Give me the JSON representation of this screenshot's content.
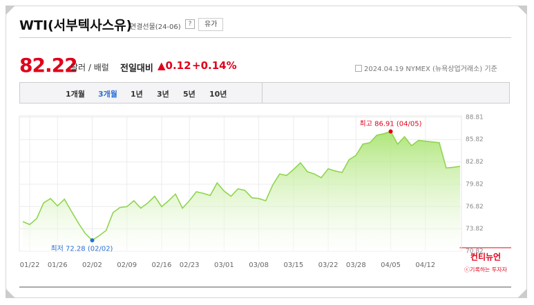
{
  "header": {
    "title": "WTI(서부텍사스유)",
    "subtitle": "연결선물(24-06)",
    "help": "?",
    "button": "유가",
    "price": "82.22",
    "unit": "달러 / 배럴",
    "change_label": "전일대비",
    "change": "▲0.12",
    "change_pct": "+0.14%",
    "basis": "2024.04.19 NYMEX (뉴욕상업거래소) 기준",
    "tabs": [
      "1개월",
      "3개월",
      "1년",
      "3년",
      "5년",
      "10년"
    ]
  },
  "chart_data": {
    "type": "area",
    "color": "#8fd44f",
    "categories": [
      null,
      "01/22",
      null,
      null,
      null,
      "01/26",
      null,
      null,
      null,
      null,
      "02/02",
      null,
      null,
      null,
      null,
      "02/09",
      null,
      null,
      null,
      null,
      "02/16",
      null,
      null,
      null,
      "02/23",
      null,
      null,
      null,
      null,
      "03/01",
      null,
      null,
      null,
      null,
      "03/08",
      null,
      null,
      null,
      null,
      "03/15",
      null,
      null,
      null,
      null,
      "03/22",
      null,
      null,
      null,
      "03/28",
      null,
      null,
      null,
      null,
      "04/05",
      null,
      null,
      null,
      null,
      "04/12",
      null,
      null,
      null,
      null,
      null
    ],
    "values": [
      74.8,
      74.4,
      75.2,
      77.3,
      77.9,
      76.9,
      77.8,
      76.2,
      74.6,
      73.2,
      72.28,
      72.9,
      73.6,
      76.0,
      76.7,
      76.8,
      77.6,
      76.6,
      77.3,
      78.2,
      76.8,
      77.6,
      78.5,
      76.6,
      77.6,
      78.8,
      78.6,
      78.3,
      80.0,
      78.9,
      78.2,
      79.2,
      79.0,
      78.0,
      77.9,
      77.6,
      79.7,
      81.2,
      81.0,
      81.8,
      82.7,
      81.5,
      81.2,
      80.7,
      81.9,
      81.6,
      81.4,
      83.1,
      83.7,
      85.2,
      85.4,
      86.4,
      86.6,
      86.91,
      85.2,
      86.2,
      85.0,
      85.7,
      85.6,
      85.5,
      85.4,
      82.0,
      82.1,
      82.22
    ],
    "ylim": [
      70.82,
      88.81
    ],
    "yticks": [
      70.82,
      73.82,
      76.82,
      79.82,
      82.82,
      85.82,
      88.81
    ],
    "grid": true,
    "high_label": "최고 86.91 (04/05)",
    "low_label": "최저 72.28 (02/02)",
    "high_color": "#e0001b",
    "low_color": "#2a6fd6"
  },
  "watermark": {
    "name": "컨티뉴언",
    "sub": "ⓒ기록하는 투자자"
  }
}
